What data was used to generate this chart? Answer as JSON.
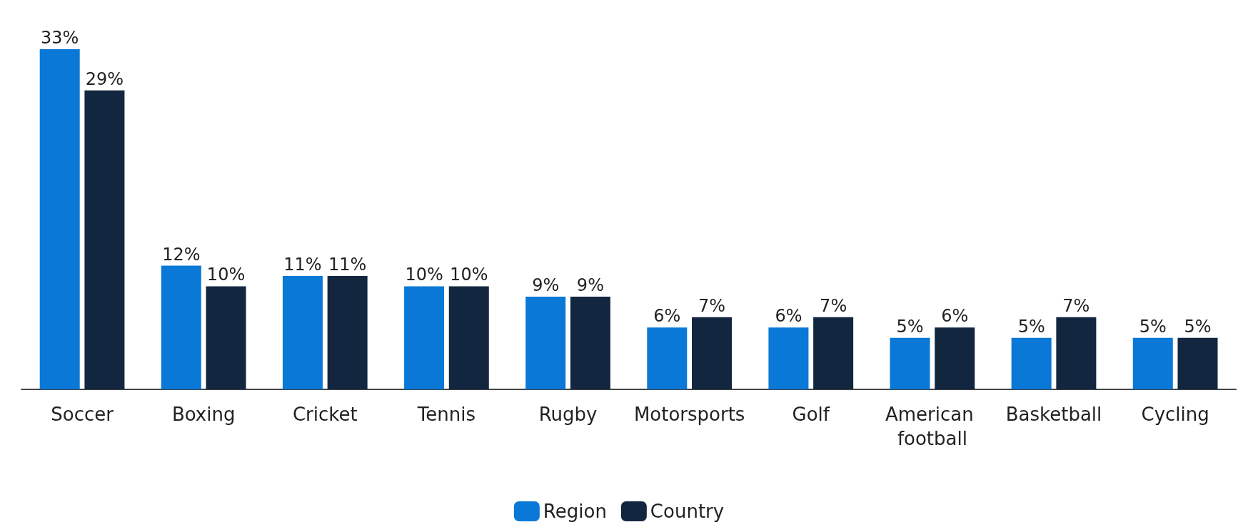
{
  "chart_data": {
    "type": "bar",
    "categories": [
      "Soccer",
      "Boxing",
      "Cricket",
      "Tennis",
      "Rugby",
      "Motorsports",
      "Golf",
      "American football",
      "Basketball",
      "Cycling"
    ],
    "series": [
      {
        "name": "Region",
        "color": "#0a78d6",
        "values": [
          33,
          12,
          11,
          10,
          9,
          6,
          6,
          5,
          5,
          5
        ],
        "value_labels": [
          "33%",
          "12%",
          "11%",
          "10%",
          "9%",
          "6%",
          "6%",
          "5%",
          "5%",
          "5%"
        ]
      },
      {
        "name": "Country",
        "color": "#13263f",
        "values": [
          29,
          10,
          11,
          10,
          9,
          7,
          7,
          6,
          7,
          5
        ],
        "value_labels": [
          "29%",
          "10%",
          "11%",
          "10%",
          "9%",
          "7%",
          "7%",
          "6%",
          "7%",
          "5%"
        ]
      }
    ],
    "grid": false,
    "legend": "bottom"
  }
}
